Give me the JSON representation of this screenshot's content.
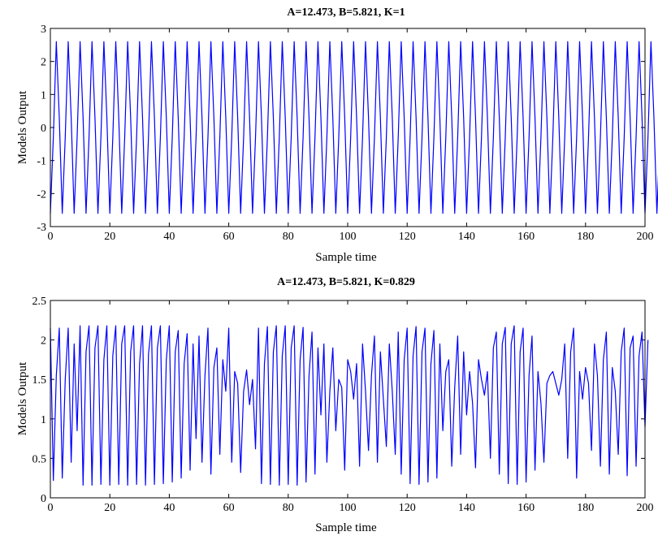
{
  "chart_data": [
    {
      "type": "line",
      "title": "A=12.473, B=5.821, K=1",
      "xlabel": "Sample time",
      "ylabel": "Models Output",
      "xlim": [
        0,
        200
      ],
      "ylim": [
        -3,
        3
      ],
      "xticks": [
        0,
        20,
        40,
        60,
        80,
        100,
        120,
        140,
        160,
        180,
        200
      ],
      "yticks": [
        3,
        2,
        1,
        0,
        -1,
        -2,
        -3
      ],
      "xtick_labels": [
        "0",
        "20",
        "40",
        "60",
        "80",
        "100",
        "120",
        "140",
        "160",
        "180",
        "200"
      ],
      "ytick_labels": [
        "3",
        "2",
        "1",
        "0",
        "-1",
        "-2",
        "-3"
      ],
      "grid": false,
      "series_color": "#0000ff",
      "series": [
        {
          "x_start": 0,
          "x_step": 1,
          "values": [
            -2.6,
            -0.3,
            2.6,
            0.3,
            -2.6,
            -0.3,
            2.6,
            0.3,
            -2.6,
            -0.3,
            2.6,
            0.3,
            -2.6,
            -0.3,
            2.6,
            0.3,
            -2.6,
            -0.3,
            2.6,
            0.3,
            -2.6,
            -0.3,
            2.6,
            0.3,
            -2.6,
            -0.3,
            2.6,
            0.3,
            -2.6,
            -0.3,
            2.6,
            0.3,
            -2.6,
            -0.3,
            2.6,
            0.3,
            -2.6,
            -0.3,
            2.6,
            0.3,
            -2.6,
            -0.3,
            2.6,
            0.3,
            -2.6,
            -0.3,
            2.6,
            0.3,
            -2.6,
            -0.3,
            2.6,
            0.3,
            -2.6,
            -0.3,
            2.6,
            0.3,
            -2.6,
            -0.3,
            2.6,
            0.3,
            -2.6,
            -0.3,
            2.6,
            0.3,
            -2.6,
            -0.3,
            2.6,
            0.3,
            -2.6,
            -0.3,
            2.6,
            0.3,
            -2.6,
            -0.3,
            2.6,
            0.3,
            -2.6,
            -0.3,
            2.6,
            0.3,
            -2.6,
            -0.3,
            2.6,
            0.3,
            -2.6,
            -0.3,
            2.6,
            0.3,
            -2.6,
            -0.3,
            2.6,
            0.3,
            -2.6,
            -0.3,
            2.6,
            0.3,
            -2.6,
            -0.3,
            2.6,
            0.3,
            -2.6,
            -0.3,
            2.6,
            0.3,
            -2.6,
            -0.3,
            2.6,
            0.3,
            -2.6,
            -0.3,
            2.6,
            0.3,
            -2.6,
            -0.3,
            2.6,
            0.3,
            -2.6,
            -0.3,
            2.6,
            0.3,
            -2.6,
            -0.3,
            2.6,
            0.3,
            -2.6,
            -0.3,
            2.6,
            0.3,
            -2.6,
            -0.3,
            2.6,
            0.3,
            -2.6,
            -0.3,
            2.6,
            0.3,
            -2.6,
            -0.3,
            2.6,
            0.3,
            -2.6,
            -0.3,
            2.6,
            0.3,
            -2.6,
            -0.3,
            2.6,
            0.3,
            -2.6,
            -0.3,
            2.6,
            0.3,
            -2.6,
            -0.3,
            2.6,
            0.3,
            -2.6,
            -0.3,
            2.6,
            0.3,
            -2.6,
            -0.3,
            2.6,
            0.3,
            -2.6,
            -0.3,
            2.6,
            0.3,
            -2.6,
            -0.3,
            2.6,
            0.3,
            -2.6,
            -0.3,
            2.6,
            0.3,
            -2.6,
            -0.3,
            2.6,
            0.3,
            -2.6,
            -0.3,
            2.6,
            0.3,
            -2.6,
            -0.3,
            2.6,
            0.3,
            -2.6,
            -0.3,
            2.6,
            0.3,
            -2.6,
            -0.3,
            2.6,
            0.3,
            -2.6,
            -0.3,
            2.6,
            0.3,
            -2.6,
            -0.3,
            2.6,
            0.3,
            -2.6,
            -0.3,
            2.6,
            0.3,
            -2.6,
            -0.3,
            2.6,
            0.3,
            -2.6,
            -0.3,
            2.6,
            -1.3
          ]
        }
      ]
    },
    {
      "type": "line",
      "title": "A=12.473, B=5.821, K=0.829",
      "xlabel": "Sample time",
      "ylabel": "Models Output",
      "xlim": [
        0,
        200
      ],
      "ylim": [
        0,
        2.5
      ],
      "xticks": [
        0,
        20,
        40,
        60,
        80,
        100,
        120,
        140,
        160,
        180,
        200
      ],
      "yticks": [
        2.5,
        2,
        1.5,
        1,
        0.5,
        0
      ],
      "xtick_labels": [
        "0",
        "20",
        "40",
        "60",
        "80",
        "100",
        "120",
        "140",
        "160",
        "180",
        "200"
      ],
      "ytick_labels": [
        "2.5",
        "2",
        "1.5",
        "1",
        "0.5",
        "0"
      ],
      "grid": false,
      "series_color": "#0000ff",
      "series": [
        {
          "x_start": 0,
          "x_step": 1,
          "values": [
            2.15,
            0.22,
            1.55,
            2.15,
            0.25,
            1.5,
            2.15,
            0.45,
            1.95,
            0.85,
            2.18,
            0.16,
            1.85,
            2.18,
            0.16,
            1.9,
            2.18,
            0.17,
            1.75,
            2.18,
            0.16,
            1.8,
            2.18,
            0.17,
            1.95,
            2.18,
            0.16,
            1.85,
            2.18,
            0.17,
            1.7,
            2.18,
            0.16,
            1.82,
            2.18,
            0.17,
            1.9,
            2.18,
            0.18,
            1.75,
            2.18,
            0.2,
            1.85,
            2.12,
            0.25,
            1.7,
            2.08,
            0.35,
            1.95,
            0.75,
            2.05,
            0.45,
            1.55,
            2.15,
            0.3,
            1.65,
            1.9,
            0.55,
            1.75,
            1.35,
            2.15,
            0.45,
            1.6,
            1.45,
            0.32,
            1.35,
            1.62,
            1.18,
            1.5,
            0.62,
            2.15,
            0.18,
            1.7,
            2.17,
            0.17,
            1.85,
            2.18,
            0.16,
            1.8,
            2.18,
            0.17,
            1.9,
            2.18,
            0.16,
            1.75,
            2.16,
            0.2,
            1.55,
            2.1,
            0.3,
            1.9,
            1.05,
            1.95,
            0.45,
            1.35,
            1.9,
            0.85,
            1.5,
            1.4,
            0.35,
            1.75,
            1.6,
            1.25,
            1.7,
            0.4,
            1.95,
            1.35,
            0.6,
            1.55,
            2.05,
            0.45,
            1.85,
            1.25,
            0.65,
            1.95,
            1.35,
            0.55,
            2.1,
            0.3,
            1.75,
            2.15,
            0.18,
            1.8,
            2.17,
            0.17,
            1.85,
            2.15,
            0.2,
            1.7,
            2.12,
            0.25,
            1.95,
            0.85,
            1.6,
            1.75,
            0.4,
            1.4,
            2.05,
            0.55,
            1.85,
            1.05,
            1.6,
            1.2,
            0.38,
            1.75,
            1.5,
            1.3,
            1.6,
            0.5,
            1.9,
            2.1,
            0.3,
            1.95,
            2.16,
            0.18,
            1.95,
            2.18,
            0.17,
            1.85,
            2.15,
            0.2,
            1.55,
            2.05,
            0.35,
            1.6,
            1.2,
            0.45,
            1.45,
            1.55,
            1.6,
            1.45,
            1.3,
            1.5,
            1.95,
            0.5,
            1.85,
            2.15,
            0.25,
            1.6,
            1.25,
            1.65,
            1.45,
            0.6,
            1.95,
            1.55,
            0.4,
            1.75,
            2.1,
            0.3,
            1.65,
            1.35,
            0.55,
            1.85,
            2.15,
            0.28,
            1.9,
            2.05,
            0.4,
            1.8,
            2.1,
            0.9,
            2.0
          ]
        }
      ]
    }
  ]
}
